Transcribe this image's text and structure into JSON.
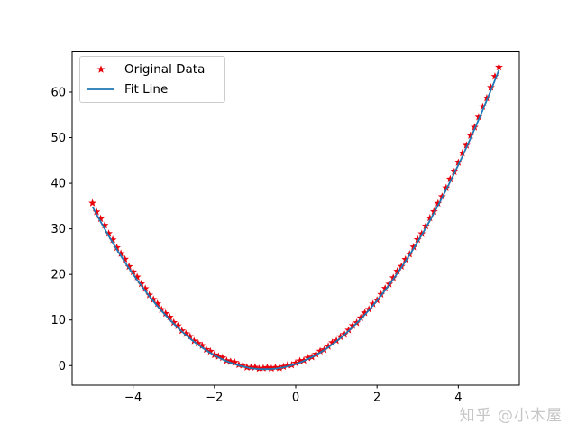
{
  "figure_background": "#ffffff",
  "watermark": {
    "text": "知乎 @小木屋",
    "color": "#c6c6c6"
  },
  "chart_data": {
    "type": "scatter+line",
    "title": "",
    "xlabel": "",
    "ylabel": "",
    "grid": false,
    "xlim": [
      -5.5,
      5.5
    ],
    "ylim": [
      -4.3,
      68.8
    ],
    "x_ticks": [
      -4,
      -2,
      0,
      2,
      4
    ],
    "x_tick_labels": [
      "−4",
      "−2",
      "0",
      "2",
      "4"
    ],
    "y_ticks": [
      0,
      10,
      20,
      30,
      40,
      50,
      60
    ],
    "y_tick_labels": [
      "0",
      "10",
      "20",
      "30",
      "40",
      "50",
      "60"
    ],
    "axis_color": "#000000",
    "legend": {
      "position": "upper left",
      "items": [
        {
          "label": "Original Data",
          "marker": "star",
          "color": "#e8000b"
        },
        {
          "label": "Fit Line",
          "marker": "line",
          "color": "#1f77b4"
        }
      ]
    },
    "series": [
      {
        "name": "Original Data",
        "type": "scatter",
        "marker": "star",
        "color": "#e8000b",
        "x": [
          -5,
          -4.9,
          -4.8,
          -4.7,
          -4.6,
          -4.5,
          -4.4,
          -4.3,
          -4.2,
          -4.1,
          -4,
          -3.9,
          -3.8,
          -3.7,
          -3.6,
          -3.5,
          -3.4,
          -3.3,
          -3.2,
          -3.1,
          -3,
          -2.9,
          -2.8,
          -2.7,
          -2.6,
          -2.5,
          -2.4,
          -2.3,
          -2.2,
          -2.1,
          -2,
          -1.9,
          -1.8,
          -1.7,
          -1.6,
          -1.5,
          -1.4,
          -1.3,
          -1.2,
          -1.1,
          -1,
          -0.9,
          -0.8,
          -0.7,
          -0.6,
          -0.5,
          -0.4,
          -0.3,
          -0.2,
          -0.1,
          0,
          0.1,
          0.2,
          0.3,
          0.4,
          0.5,
          0.6,
          0.7,
          0.8,
          0.9,
          1,
          1.1,
          1.2,
          1.3,
          1.4,
          1.5,
          1.6,
          1.7,
          1.8,
          1.9,
          2,
          2.1,
          2.2,
          2.3,
          2.4,
          2.5,
          2.6,
          2.7,
          2.8,
          2.9,
          3,
          3.1,
          3.2,
          3.3,
          3.4,
          3.5,
          3.6,
          3.7,
          3.8,
          3.9,
          4,
          4.1,
          4.2,
          4.3,
          4.4,
          4.5,
          4.6,
          4.7,
          4.8,
          4.9,
          5
        ],
        "y": [
          35.65,
          33.72,
          32.23,
          30.78,
          28.97,
          27.6,
          25.87,
          24.58,
          23.33,
          21.72,
          20.55,
          19.42,
          17.93,
          16.88,
          15.47,
          14.5,
          13.57,
          12.28,
          11.43,
          10.62,
          9.45,
          8.72,
          7.63,
          6.98,
          6.37,
          5.4,
          4.87,
          4.38,
          3.53,
          3.12,
          2.35,
          2.02,
          1.73,
          1.08,
          0.87,
          0.7,
          0.17,
          0.08,
          -0.37,
          -0.38,
          -0.35,
          -0.68,
          -0.57,
          -0.42,
          -0.63,
          -0.4,
          -0.53,
          -0.22,
          0.13,
          0.12,
          0.55,
          1.02,
          1.13,
          1.68,
          1.87,
          2.5,
          3.17,
          3.48,
          4.23,
          5.02,
          5.45,
          6.32,
          6.83,
          7.78,
          8.77,
          9.4,
          10.47,
          11.58,
          12.33,
          13.52,
          14.35,
          15.62,
          16.93,
          17.88,
          19.27,
          20.7,
          21.77,
          23.28,
          24.43,
          26.02,
          27.65,
          28.92,
          30.63,
          32.38,
          33.77,
          35.6,
          37.07,
          38.98,
          40.93,
          42.52,
          44.55,
          46.62,
          48.33,
          50.48,
          52.27,
          54.5,
          56.77,
          58.68,
          61.03,
          63.42,
          65.45
        ]
      },
      {
        "name": "Fit Line",
        "type": "line",
        "color": "#1f77b4",
        "fit_coefficients": [
          1.98,
          3.0,
          0.35
        ],
        "x_range": [
          -5,
          5
        ]
      }
    ]
  }
}
